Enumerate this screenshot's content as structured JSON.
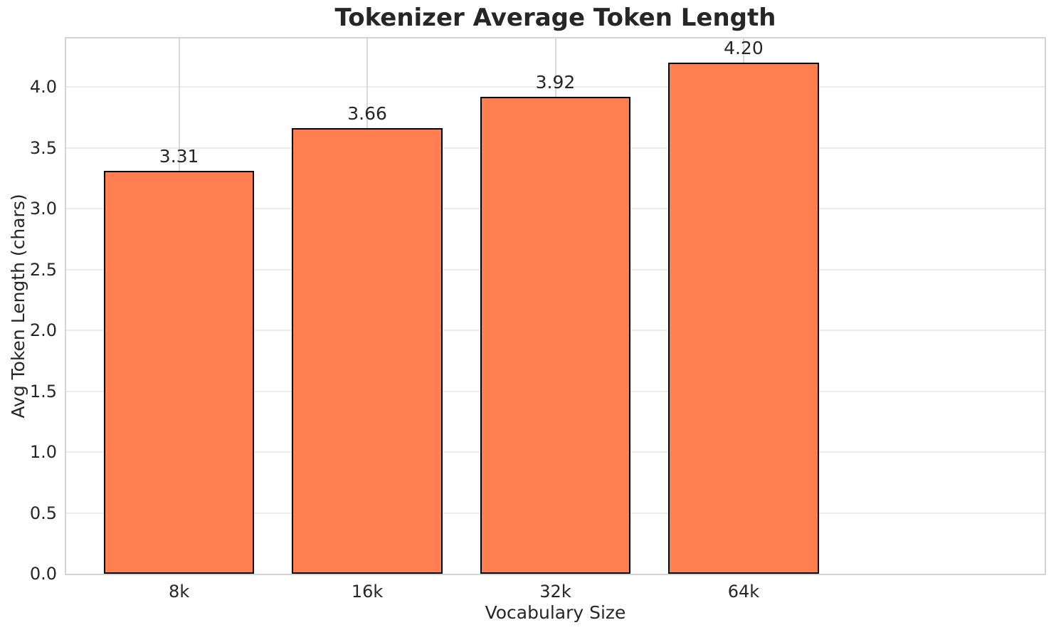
{
  "chart_data": {
    "type": "bar",
    "title": "Tokenizer Average Token Length",
    "xlabel": "Vocabulary Size",
    "ylabel": "Avg Token Length (chars)",
    "categories": [
      "8k",
      "16k",
      "32k",
      "64k"
    ],
    "values": [
      3.31,
      3.66,
      3.92,
      4.2
    ],
    "value_labels": [
      "3.31",
      "3.66",
      "3.92",
      "4.20"
    ],
    "ylim": [
      0,
      4.4
    ],
    "yticks": [
      0.0,
      0.5,
      1.0,
      1.5,
      2.0,
      2.5,
      3.0,
      3.5,
      4.0
    ],
    "ytick_labels": [
      "0.0",
      "0.5",
      "1.0",
      "1.5",
      "2.0",
      "2.5",
      "3.0",
      "3.5",
      "4.0"
    ],
    "grid": true,
    "legend": false,
    "colors": {
      "bar_fill": "#FF7F50",
      "bar_edge": "#000000",
      "hgrid": "#ececec",
      "vgrid": "#d9d9d9",
      "spine": "#d4d4d4",
      "text": "#262626",
      "background": "#ffffff"
    }
  }
}
